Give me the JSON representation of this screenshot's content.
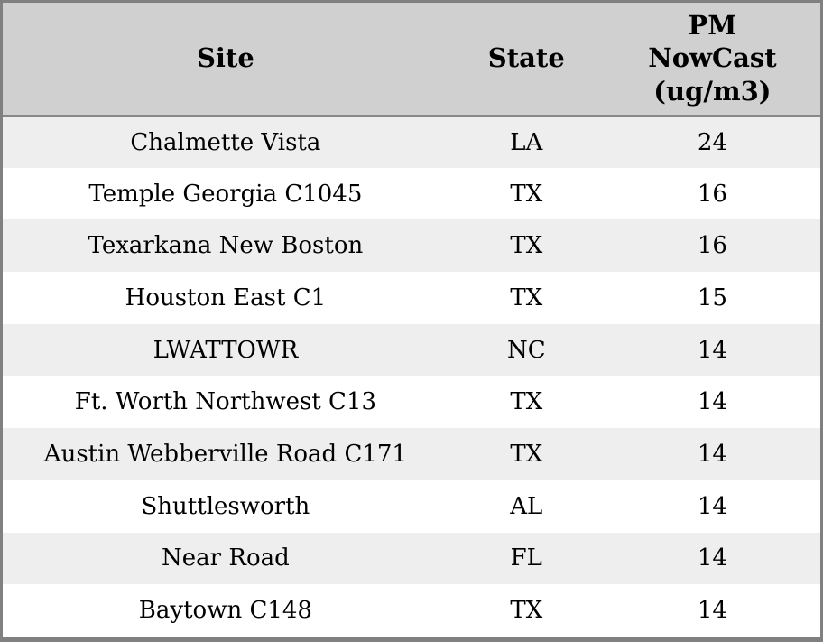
{
  "colors": {
    "outer_border": "#808080",
    "header_bg": "#d0d0d0",
    "header_divider": "#888888",
    "row_alt_bg": "#eeeeee",
    "row_bg": "#ffffff",
    "text": "#000000"
  },
  "table": {
    "columns": [
      {
        "key": "site",
        "label": "Site"
      },
      {
        "key": "state",
        "label": "State"
      },
      {
        "key": "pm",
        "label": "PM\nNowCast\n(ug/m3)"
      }
    ],
    "rows": [
      {
        "site": "Chalmette Vista",
        "state": "LA",
        "pm": "24"
      },
      {
        "site": "Temple Georgia C1045",
        "state": "TX",
        "pm": "16"
      },
      {
        "site": "Texarkana New Boston",
        "state": "TX",
        "pm": "16"
      },
      {
        "site": "Houston East C1",
        "state": "TX",
        "pm": "15"
      },
      {
        "site": "LWATTOWR",
        "state": "NC",
        "pm": "14"
      },
      {
        "site": "Ft. Worth Northwest C13",
        "state": "TX",
        "pm": "14"
      },
      {
        "site": "Austin Webberville Road C171",
        "state": "TX",
        "pm": "14"
      },
      {
        "site": "Shuttlesworth",
        "state": "AL",
        "pm": "14"
      },
      {
        "site": "Near Road",
        "state": "FL",
        "pm": "14"
      },
      {
        "site": "Baytown C148",
        "state": "TX",
        "pm": "14"
      }
    ]
  },
  "chart_data": {
    "type": "table",
    "title": "",
    "columns": [
      "Site",
      "State",
      "PM NowCast (ug/m3)"
    ],
    "rows": [
      [
        "Chalmette Vista",
        "LA",
        24
      ],
      [
        "Temple Georgia C1045",
        "TX",
        16
      ],
      [
        "Texarkana New Boston",
        "TX",
        16
      ],
      [
        "Houston East C1",
        "TX",
        15
      ],
      [
        "LWATTOWR",
        "NC",
        14
      ],
      [
        "Ft. Worth Northwest C13",
        "TX",
        14
      ],
      [
        "Austin Webberville Road C171",
        "TX",
        14
      ],
      [
        "Shuttlesworth",
        "AL",
        14
      ],
      [
        "Near Road",
        "FL",
        14
      ],
      [
        "Baytown C148",
        "TX",
        14
      ]
    ],
    "layout_hints": {
      "header_background": "#d0d0d0",
      "alternating_row_colors": [
        "#eeeeee",
        "#ffffff"
      ],
      "text_alignment": "center"
    }
  }
}
